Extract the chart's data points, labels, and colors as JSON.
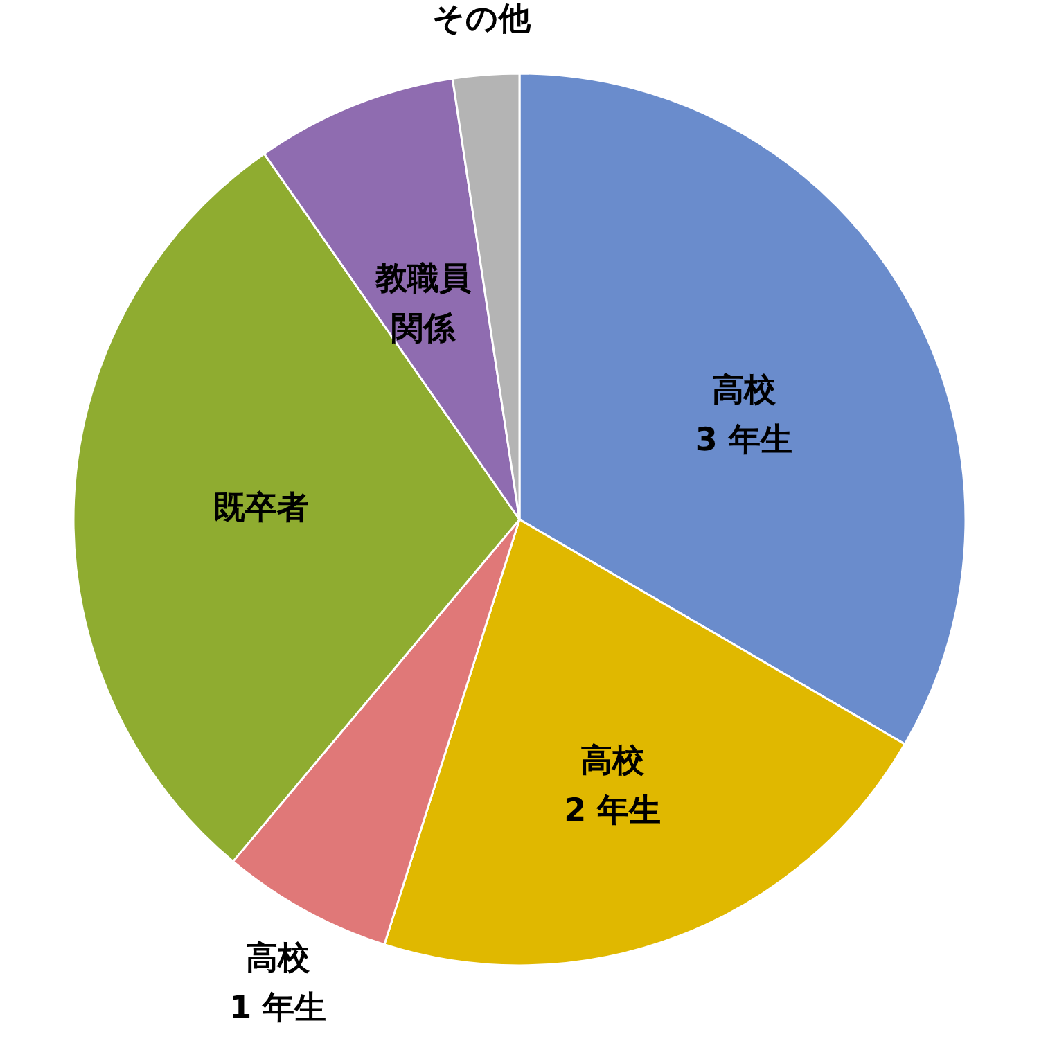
{
  "chart_data": {
    "type": "pie",
    "categories": [
      "高校\n3 年生",
      "高校\n2 年生",
      "高校\n1 年生",
      "既卒者",
      "教職員関係",
      "その他"
    ],
    "values": [
      33.4,
      21.5,
      6.2,
      29.2,
      7.3,
      2.4
    ],
    "colors": [
      "#6a8ccc",
      "#e0b800",
      "#e07878",
      "#8fac30",
      "#8f6cb0",
      "#b4b4b4"
    ]
  }
}
